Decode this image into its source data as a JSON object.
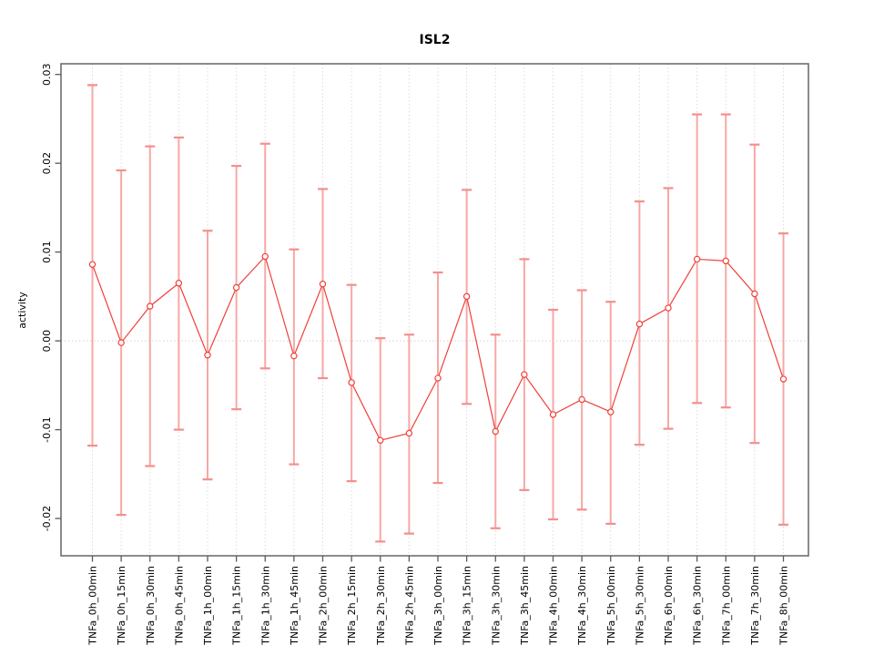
{
  "chart_data": {
    "type": "line",
    "title": "ISL2",
    "xlabel": "",
    "ylabel": "activity",
    "legend_position": "none",
    "grid": {
      "vertical_dotted_per_category": true,
      "horizontal_zero_dotted": true
    },
    "ylim": [
      -0.0242,
      0.0312
    ],
    "yticks": [
      "-0.02",
      "-0.01",
      "0.00",
      "0.01",
      "0.02",
      "0.03"
    ],
    "categories": [
      "TNFa_0h_00min",
      "TNFa_0h_15min",
      "TNFa_0h_30min",
      "TNFa_0h_45min",
      "TNFa_1h_00min",
      "TNFa_1h_15min",
      "TNFa_1h_30min",
      "TNFa_1h_45min",
      "TNFa_2h_00min",
      "TNFa_2h_15min",
      "TNFa_2h_30min",
      "TNFa_2h_45min",
      "TNFa_3h_00min",
      "TNFa_3h_15min",
      "TNFa_3h_30min",
      "TNFa_3h_45min",
      "TNFa_4h_00min",
      "TNFa_4h_30min",
      "TNFa_5h_00min",
      "TNFa_5h_30min",
      "TNFa_6h_00min",
      "TNFa_6h_30min",
      "TNFa_7h_00min",
      "TNFa_7h_30min",
      "TNFa_8h_00min"
    ],
    "values": [
      0.0086,
      -0.0002,
      0.0039,
      0.0065,
      -0.0016,
      0.006,
      0.0095,
      -0.0017,
      0.0064,
      -0.0047,
      -0.0112,
      -0.0104,
      -0.0042,
      0.005,
      -0.0102,
      -0.0038,
      -0.0083,
      -0.0066,
      -0.008,
      0.0019,
      0.0037,
      0.0092,
      0.009,
      0.0053,
      -0.0043
    ],
    "error_upper": [
      0.0288,
      0.0192,
      0.0219,
      0.0229,
      0.0124,
      0.0197,
      0.0222,
      0.0103,
      0.0171,
      0.0063,
      0.0003,
      0.0007,
      0.0077,
      0.017,
      0.0007,
      0.0092,
      0.0035,
      0.0057,
      0.0044,
      0.0157,
      0.0172,
      0.0255,
      0.0255,
      0.0221,
      0.0121
    ],
    "error_lower": [
      -0.0118,
      -0.0196,
      -0.0141,
      -0.01,
      -0.0156,
      -0.0077,
      -0.0031,
      -0.0139,
      -0.0042,
      -0.0158,
      -0.0226,
      -0.0217,
      -0.016,
      -0.0071,
      -0.0211,
      -0.0168,
      -0.0201,
      -0.019,
      -0.0206,
      -0.0117,
      -0.0099,
      -0.007,
      -0.0075,
      -0.0115,
      -0.0207
    ],
    "colors": {
      "series_line": "#ef403a",
      "marker_stroke": "#ef403a",
      "marker_fill": "#ffffff",
      "error_bar": "#f7a8a5",
      "error_cap": "#f38f8c",
      "gridline": "#dcdcdc",
      "zero_line": "#d3d3d3",
      "box": "#6e6e6e",
      "tick": "#5a5a5a",
      "label_text": "#000000"
    }
  }
}
